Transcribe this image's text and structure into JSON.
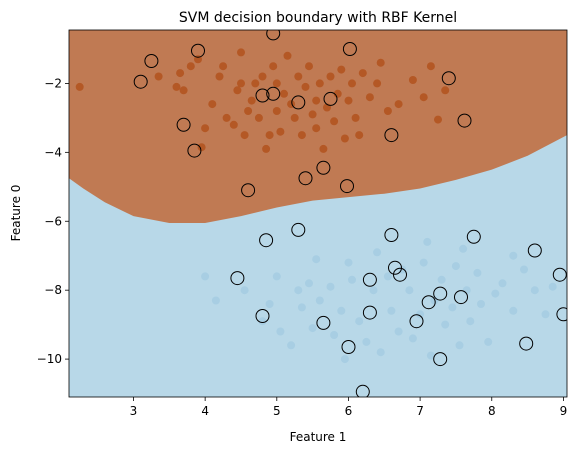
{
  "chart_data": {
    "type": "scatter",
    "title": "SVM decision boundary with RBF Kernel",
    "xlabel": "Feature 1",
    "ylabel": "Feature 0",
    "xlim": [
      2.1,
      9.05
    ],
    "ylim": [
      -11.1,
      -0.45
    ],
    "xticks": [
      3,
      4,
      5,
      6,
      7,
      8,
      9
    ],
    "yticks": [
      -10,
      -8,
      -6,
      -4,
      -2
    ],
    "grid": false,
    "legend": "none",
    "colors": {
      "region_upper": "#C07A53",
      "region_lower": "#B8D8E8",
      "points_upper": "#B35420",
      "points_lower": "#A6CEE3",
      "support_vector_edge": "#000000"
    },
    "decision_boundary": [
      [
        2.1,
        -4.75
      ],
      [
        2.3,
        -5.05
      ],
      [
        2.6,
        -5.45
      ],
      [
        3.0,
        -5.85
      ],
      [
        3.5,
        -6.05
      ],
      [
        4.0,
        -6.05
      ],
      [
        4.5,
        -5.85
      ],
      [
        5.0,
        -5.6
      ],
      [
        5.5,
        -5.4
      ],
      [
        6.0,
        -5.3
      ],
      [
        6.5,
        -5.2
      ],
      [
        7.0,
        -5.05
      ],
      [
        7.5,
        -4.8
      ],
      [
        8.0,
        -4.5
      ],
      [
        8.5,
        -4.1
      ],
      [
        9.05,
        -3.5
      ]
    ],
    "series": [
      {
        "values": [
          [
            2.25,
            -2.1
          ],
          [
            3.35,
            -1.8
          ],
          [
            3.6,
            -2.1
          ],
          [
            3.65,
            -1.7
          ],
          [
            3.7,
            -2.2
          ],
          [
            3.8,
            -1.5
          ],
          [
            3.9,
            -1.3
          ],
          [
            3.95,
            -3.85
          ],
          [
            4.0,
            -3.3
          ],
          [
            4.1,
            -2.6
          ],
          [
            4.2,
            -1.8
          ],
          [
            4.3,
            -3.0
          ],
          [
            4.4,
            -3.2
          ],
          [
            4.45,
            -2.2
          ],
          [
            4.5,
            -2.0
          ],
          [
            4.5,
            -1.1
          ],
          [
            4.55,
            -3.5
          ],
          [
            4.6,
            -2.8
          ],
          [
            4.65,
            -2.5
          ],
          [
            4.7,
            -2.0
          ],
          [
            4.75,
            -3.0
          ],
          [
            4.8,
            -1.8
          ],
          [
            4.85,
            -3.9
          ],
          [
            4.9,
            -3.5
          ],
          [
            4.95,
            -1.5
          ],
          [
            5.0,
            -2.8
          ],
          [
            5.0,
            -2.0
          ],
          [
            5.05,
            -3.4
          ],
          [
            5.1,
            -2.3
          ],
          [
            5.15,
            -1.2
          ],
          [
            5.2,
            -2.6
          ],
          [
            5.25,
            -3.0
          ],
          [
            5.3,
            -1.8
          ],
          [
            5.35,
            -3.5
          ],
          [
            5.4,
            -2.1
          ],
          [
            5.45,
            -1.5
          ],
          [
            5.5,
            -2.9
          ],
          [
            5.55,
            -3.3
          ],
          [
            5.6,
            -2.0
          ],
          [
            5.65,
            -3.9
          ],
          [
            5.7,
            -2.7
          ],
          [
            5.75,
            -1.8
          ],
          [
            5.8,
            -3.1
          ],
          [
            5.85,
            -2.3
          ],
          [
            5.9,
            -1.6
          ],
          [
            5.95,
            -3.6
          ],
          [
            6.0,
            -2.5
          ],
          [
            6.05,
            -2.0
          ],
          [
            6.1,
            -3.0
          ],
          [
            6.2,
            -1.7
          ],
          [
            6.3,
            -2.4
          ],
          [
            6.4,
            -2.0
          ],
          [
            6.45,
            -1.4
          ],
          [
            6.55,
            -2.8
          ],
          [
            6.7,
            -2.6
          ],
          [
            6.9,
            -1.9
          ],
          [
            7.05,
            -2.4
          ],
          [
            7.15,
            -1.5
          ],
          [
            7.25,
            -3.05
          ],
          [
            7.35,
            -2.2
          ],
          [
            4.25,
            -1.5
          ],
          [
            5.55,
            -2.5
          ],
          [
            6.15,
            -3.5
          ]
        ]
      },
      {
        "values": [
          [
            4.0,
            -7.6
          ],
          [
            4.15,
            -8.3
          ],
          [
            4.8,
            -8.9
          ],
          [
            4.9,
            -8.4
          ],
          [
            5.05,
            -9.2
          ],
          [
            5.2,
            -9.6
          ],
          [
            5.3,
            -8.0
          ],
          [
            5.35,
            -8.5
          ],
          [
            5.45,
            -7.8
          ],
          [
            5.5,
            -9.1
          ],
          [
            5.6,
            -8.3
          ],
          [
            5.75,
            -7.9
          ],
          [
            5.8,
            -9.3
          ],
          [
            5.9,
            -8.6
          ],
          [
            5.95,
            -10.0
          ],
          [
            6.05,
            -7.7
          ],
          [
            6.15,
            -8.9
          ],
          [
            6.25,
            -9.5
          ],
          [
            6.35,
            -8.0
          ],
          [
            6.45,
            -9.8
          ],
          [
            6.55,
            -7.6
          ],
          [
            6.6,
            -8.6
          ],
          [
            6.7,
            -9.2
          ],
          [
            6.75,
            -7.4
          ],
          [
            6.85,
            -8.0
          ],
          [
            6.9,
            -9.4
          ],
          [
            7.0,
            -8.7
          ],
          [
            7.05,
            -7.2
          ],
          [
            7.15,
            -9.9
          ],
          [
            7.2,
            -8.3
          ],
          [
            7.3,
            -7.7
          ],
          [
            7.35,
            -9.0
          ],
          [
            7.45,
            -8.5
          ],
          [
            7.5,
            -7.3
          ],
          [
            7.55,
            -9.6
          ],
          [
            7.65,
            -8.0
          ],
          [
            7.7,
            -8.9
          ],
          [
            7.8,
            -7.5
          ],
          [
            7.85,
            -8.4
          ],
          [
            7.95,
            -9.5
          ],
          [
            8.05,
            -8.1
          ],
          [
            8.15,
            -7.8
          ],
          [
            8.3,
            -8.6
          ],
          [
            8.45,
            -7.4
          ],
          [
            8.6,
            -8.0
          ],
          [
            8.75,
            -8.7
          ],
          [
            8.85,
            -7.9
          ],
          [
            6.0,
            -7.2
          ],
          [
            5.55,
            -7.1
          ],
          [
            5.0,
            -7.6
          ],
          [
            6.4,
            -6.9
          ],
          [
            7.1,
            -6.6
          ],
          [
            7.6,
            -6.8
          ],
          [
            8.3,
            -7.0
          ],
          [
            4.55,
            -8.0
          ]
        ]
      }
    ],
    "support_vectors": [
      [
        3.1,
        -1.95
      ],
      [
        3.25,
        -1.35
      ],
      [
        3.7,
        -3.2
      ],
      [
        3.85,
        -3.95
      ],
      [
        3.9,
        -1.05
      ],
      [
        4.6,
        -5.1
      ],
      [
        4.8,
        -2.35
      ],
      [
        4.95,
        -2.3
      ],
      [
        4.95,
        -0.55
      ],
      [
        5.3,
        -2.55
      ],
      [
        5.4,
        -4.75
      ],
      [
        5.65,
        -4.45
      ],
      [
        5.75,
        -2.45
      ],
      [
        5.98,
        -4.98
      ],
      [
        6.02,
        -1.0
      ],
      [
        6.6,
        -3.5
      ],
      [
        7.4,
        -1.85
      ],
      [
        7.62,
        -3.08
      ],
      [
        4.85,
        -6.55
      ],
      [
        5.3,
        -6.25
      ],
      [
        4.45,
        -7.65
      ],
      [
        4.8,
        -8.75
      ],
      [
        5.65,
        -8.95
      ],
      [
        6.0,
        -9.65
      ],
      [
        6.2,
        -10.95
      ],
      [
        6.3,
        -7.7
      ],
      [
        6.3,
        -8.65
      ],
      [
        6.6,
        -6.4
      ],
      [
        6.65,
        -7.35
      ],
      [
        6.72,
        -7.55
      ],
      [
        6.95,
        -8.9
      ],
      [
        7.12,
        -8.35
      ],
      [
        7.28,
        -8.1
      ],
      [
        7.28,
        -10.0
      ],
      [
        7.75,
        -6.45
      ],
      [
        7.57,
        -8.2
      ],
      [
        8.48,
        -9.55
      ],
      [
        8.6,
        -6.85
      ],
      [
        8.95,
        -7.55
      ],
      [
        9.0,
        -8.7
      ]
    ]
  }
}
